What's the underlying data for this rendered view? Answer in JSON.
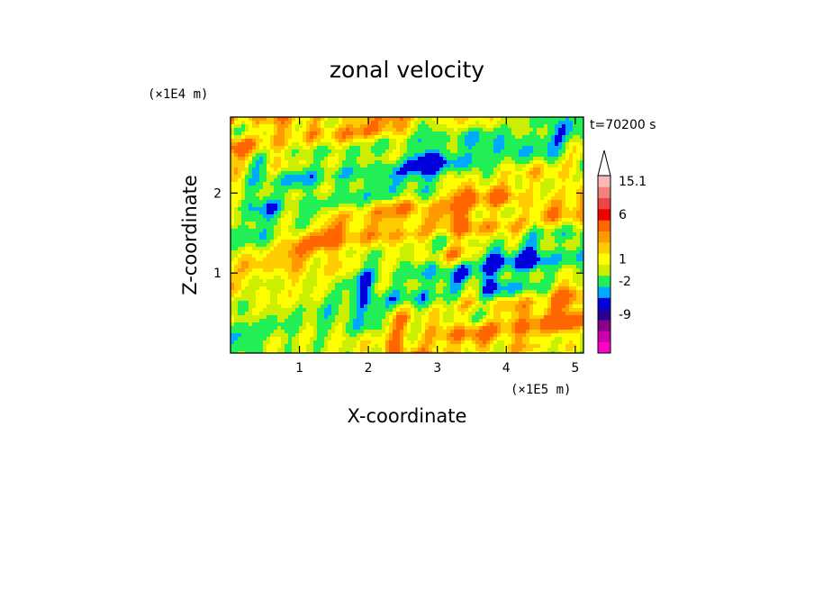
{
  "chart_data": {
    "type": "heatmap",
    "title": "zonal velocity",
    "xlabel": "X-coordinate",
    "ylabel": "Z-coordinate",
    "x_unit_label": "(×1E5 m)",
    "y_unit_label": "(×1E4 m)",
    "time_label": "t=70200 s",
    "xlim": [
      0,
      5.12
    ],
    "ylim": [
      0,
      2.95
    ],
    "x_ticks": [
      {
        "value": 1,
        "label": "1"
      },
      {
        "value": 2,
        "label": "2"
      },
      {
        "value": 3,
        "label": "3"
      },
      {
        "value": 4,
        "label": "4"
      },
      {
        "value": 5,
        "label": "5"
      }
    ],
    "y_ticks": [
      {
        "value": 1,
        "label": "1"
      },
      {
        "value": 2,
        "label": "2"
      }
    ],
    "colorbar": {
      "colors": [
        "#ff00cc",
        "#cc00aa",
        "#8b008b",
        "#220099",
        "#0000dd",
        "#00aaff",
        "#22ee55",
        "#ccee00",
        "#ffff00",
        "#ffcc00",
        "#ff9900",
        "#ff6600",
        "#ee0000",
        "#ee4444",
        "#f48080",
        "#f8b8b8"
      ],
      "labels": [
        {
          "text": "-9",
          "index": 3
        },
        {
          "text": "-2",
          "index": 6
        },
        {
          "text": "1",
          "index": 8
        },
        {
          "text": "6",
          "index": 12
        },
        {
          "text": "15.1",
          "index": 15
        }
      ],
      "extend_top": true
    },
    "grid": false,
    "legend": "right"
  }
}
